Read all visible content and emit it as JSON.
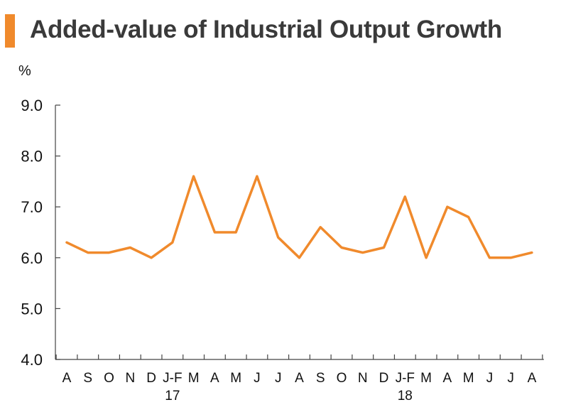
{
  "chart_data": {
    "type": "line",
    "title": "Added-value of Industrial Output Growth",
    "ylabel": "%",
    "xlabel": "",
    "ylim": [
      4.0,
      9.0
    ],
    "yticks": [
      "4.0",
      "5.0",
      "6.0",
      "7.0",
      "8.0",
      "9.0"
    ],
    "categories": [
      "A",
      "S",
      "O",
      "N",
      "D",
      "J-F",
      "M",
      "A",
      "M",
      "J",
      "J",
      "A",
      "S",
      "O",
      "N",
      "D",
      "J-F",
      "M",
      "A",
      "M",
      "J",
      "J",
      "A"
    ],
    "year_labels": [
      {
        "label": "17",
        "category_index": 5
      },
      {
        "label": "18",
        "category_index": 16
      }
    ],
    "series": [
      {
        "name": "Added-value of Industrial Output Growth",
        "color": "#f08a2c",
        "values": [
          6.3,
          6.1,
          6.1,
          6.2,
          6.0,
          6.3,
          7.6,
          6.5,
          6.5,
          7.6,
          6.4,
          6.0,
          6.6,
          6.2,
          6.1,
          6.2,
          7.2,
          6.0,
          7.0,
          6.8,
          6.0,
          6.0,
          6.1
        ]
      }
    ],
    "grid": false
  },
  "colors": {
    "accent": "#f08a2c",
    "axis": "#444444",
    "title_text": "#3a3a3a"
  }
}
